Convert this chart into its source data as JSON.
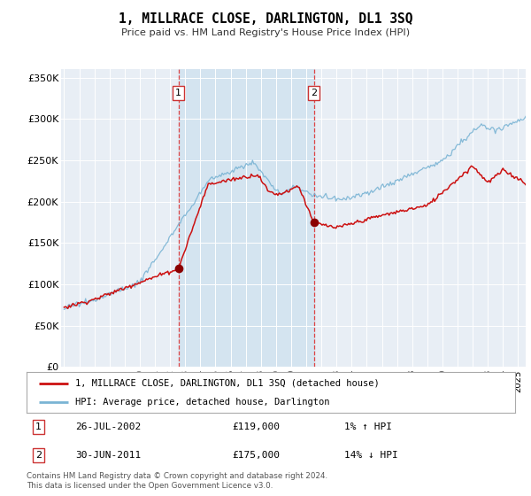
{
  "title": "1, MILLRACE CLOSE, DARLINGTON, DL1 3SQ",
  "subtitle": "Price paid vs. HM Land Registry's House Price Index (HPI)",
  "legend_line1": "1, MILLRACE CLOSE, DARLINGTON, DL1 3SQ (detached house)",
  "legend_line2": "HPI: Average price, detached house, Darlington",
  "sale1_label": "1",
  "sale1_date": "26-JUL-2002",
  "sale1_price": "£119,000",
  "sale1_hpi": "1% ↑ HPI",
  "sale2_label": "2",
  "sale2_date": "30-JUN-2011",
  "sale2_price": "£175,000",
  "sale2_hpi": "14% ↓ HPI",
  "footer": "Contains HM Land Registry data © Crown copyright and database right 2024.\nThis data is licensed under the Open Government Licence v3.0.",
  "hpi_color": "#7ab4d4",
  "price_color": "#cc1111",
  "sale_marker_color": "#8b0000",
  "vline1_color": "#dd4444",
  "vline2_color": "#888888",
  "bg_color": "#e8eef5",
  "span_color": "#d4e4f0",
  "ylim": [
    0,
    360000
  ],
  "yticks": [
    0,
    50000,
    100000,
    150000,
    200000,
    250000,
    300000,
    350000
  ],
  "ylabel_fmt": [
    "£0",
    "£50K",
    "£100K",
    "£150K",
    "£200K",
    "£250K",
    "£300K",
    "£350K"
  ],
  "sale1_x": 2002.55,
  "sale1_y": 119000,
  "sale2_x": 2011.5,
  "sale2_y": 175000,
  "xmin": 1994.8,
  "xmax": 2025.5
}
